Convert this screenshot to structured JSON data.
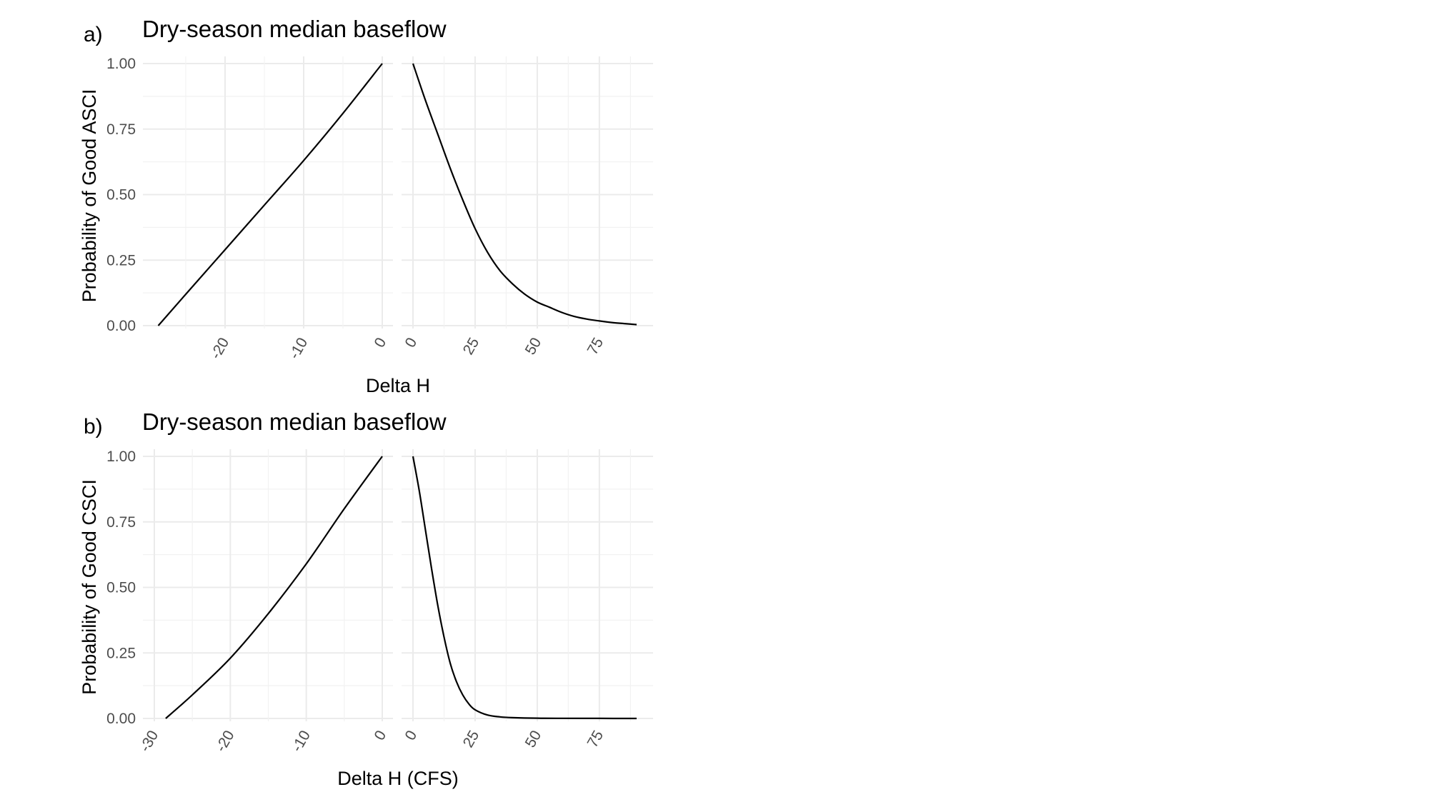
{
  "chart_data": [
    {
      "type": "line",
      "panel_label": "a)",
      "title": "Dry-season median baseflow",
      "ylabel": "Probability of Good ASCI",
      "xlabel": "Delta H",
      "ylim": [
        0,
        1
      ],
      "yticks": [
        "0.00",
        "0.25",
        "0.50",
        "0.75",
        "1.00"
      ],
      "grid": true,
      "facets": [
        {
          "xlim": [
            -29,
            0
          ],
          "xticks": [
            "-20",
            "-10",
            "0"
          ],
          "series": [
            {
              "x": [
                -28.5,
                -25,
                -20,
                -15,
                -10,
                -5,
                0
              ],
              "y": [
                0.0,
                0.12,
                0.29,
                0.46,
                0.63,
                0.81,
                1.0
              ]
            }
          ]
        },
        {
          "xlim": [
            0,
            92
          ],
          "xticks": [
            "0",
            "25",
            "50",
            "75"
          ],
          "series": [
            {
              "x": [
                0,
                5,
                10,
                15,
                20,
                25,
                30,
                35,
                40,
                45,
                50,
                55,
                60,
                65,
                70,
                75,
                80,
                85,
                90
              ],
              "y": [
                1.0,
                0.86,
                0.73,
                0.6,
                0.48,
                0.37,
                0.28,
                0.21,
                0.16,
                0.12,
                0.09,
                0.07,
                0.05,
                0.035,
                0.025,
                0.018,
                0.012,
                0.008,
                0.004
              ]
            }
          ]
        }
      ]
    },
    {
      "type": "line",
      "panel_label": "b)",
      "title": "Dry-season median baseflow",
      "ylabel": "Probability of Good CSCI",
      "xlabel": "Delta H (CFS)",
      "ylim": [
        0,
        1
      ],
      "yticks": [
        "0.00",
        "0.25",
        "0.50",
        "0.75",
        "1.00"
      ],
      "grid": true,
      "facets": [
        {
          "xlim": [
            -30,
            0
          ],
          "xticks": [
            "-30",
            "-20",
            "-10",
            "0"
          ],
          "series": [
            {
              "x": [
                -28.5,
                -25,
                -20,
                -15,
                -10,
                -5,
                0
              ],
              "y": [
                0.0,
                0.09,
                0.23,
                0.4,
                0.59,
                0.8,
                1.0
              ]
            }
          ]
        },
        {
          "xlim": [
            0,
            92
          ],
          "xticks": [
            "0",
            "25",
            "50",
            "75"
          ],
          "series": [
            {
              "x": [
                0,
                2.5,
                5,
                7.5,
                10,
                12.5,
                15,
                17.5,
                20,
                22.5,
                25,
                30,
                35,
                40,
                50,
                60,
                75,
                90
              ],
              "y": [
                1.0,
                0.87,
                0.72,
                0.57,
                0.43,
                0.31,
                0.21,
                0.14,
                0.09,
                0.055,
                0.033,
                0.013,
                0.006,
                0.003,
                0.001,
                0.0005,
                0.0002,
                0.0001
              ]
            }
          ]
        }
      ]
    }
  ]
}
